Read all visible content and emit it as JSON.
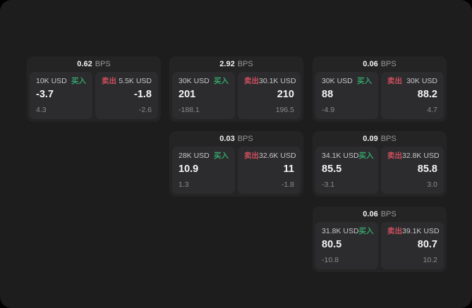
{
  "labels": {
    "bps": "BPS",
    "buy": "买入",
    "sell": "卖出"
  },
  "colors": {
    "background": "#000000",
    "window": "#1d1d1e",
    "card": "#242425",
    "panel": "#2c2c2e",
    "buy_green": "#35a169",
    "sell_red": "#cd4f5e"
  },
  "cards": [
    {
      "bps": "0.62",
      "buy": {
        "amount": "10K USD",
        "value": "-3.7",
        "sub": "4.3"
      },
      "sell": {
        "amount": "5.5K USD",
        "value": "-1.8",
        "sub": "-2.6"
      }
    },
    {
      "bps": "2.92",
      "buy": {
        "amount": "30K USD",
        "value": "201",
        "sub": "-188.1"
      },
      "sell": {
        "amount": "30.1K USD",
        "value": "210",
        "sub": "196.5"
      }
    },
    {
      "bps": "0.06",
      "buy": {
        "amount": "30K USD",
        "value": "88",
        "sub": "-4.9"
      },
      "sell": {
        "amount": "30K USD",
        "value": "88.2",
        "sub": "4.7"
      }
    },
    {
      "bps": "0.03",
      "buy": {
        "amount": "28K USD",
        "value": "10.9",
        "sub": "1.3"
      },
      "sell": {
        "amount": "32.6K USD",
        "value": "11",
        "sub": "-1.8"
      }
    },
    {
      "bps": "0.09",
      "buy": {
        "amount": "34.1K USD",
        "value": "85.5",
        "sub": "-3.1"
      },
      "sell": {
        "amount": "32.8K USD",
        "value": "85.8",
        "sub": "3.0"
      }
    },
    {
      "bps": "0.06",
      "buy": {
        "amount": "31.8K USD",
        "value": "80.5",
        "sub": "-10.8"
      },
      "sell": {
        "amount": "39.1K USD",
        "value": "80.7",
        "sub": "10.2"
      }
    }
  ]
}
